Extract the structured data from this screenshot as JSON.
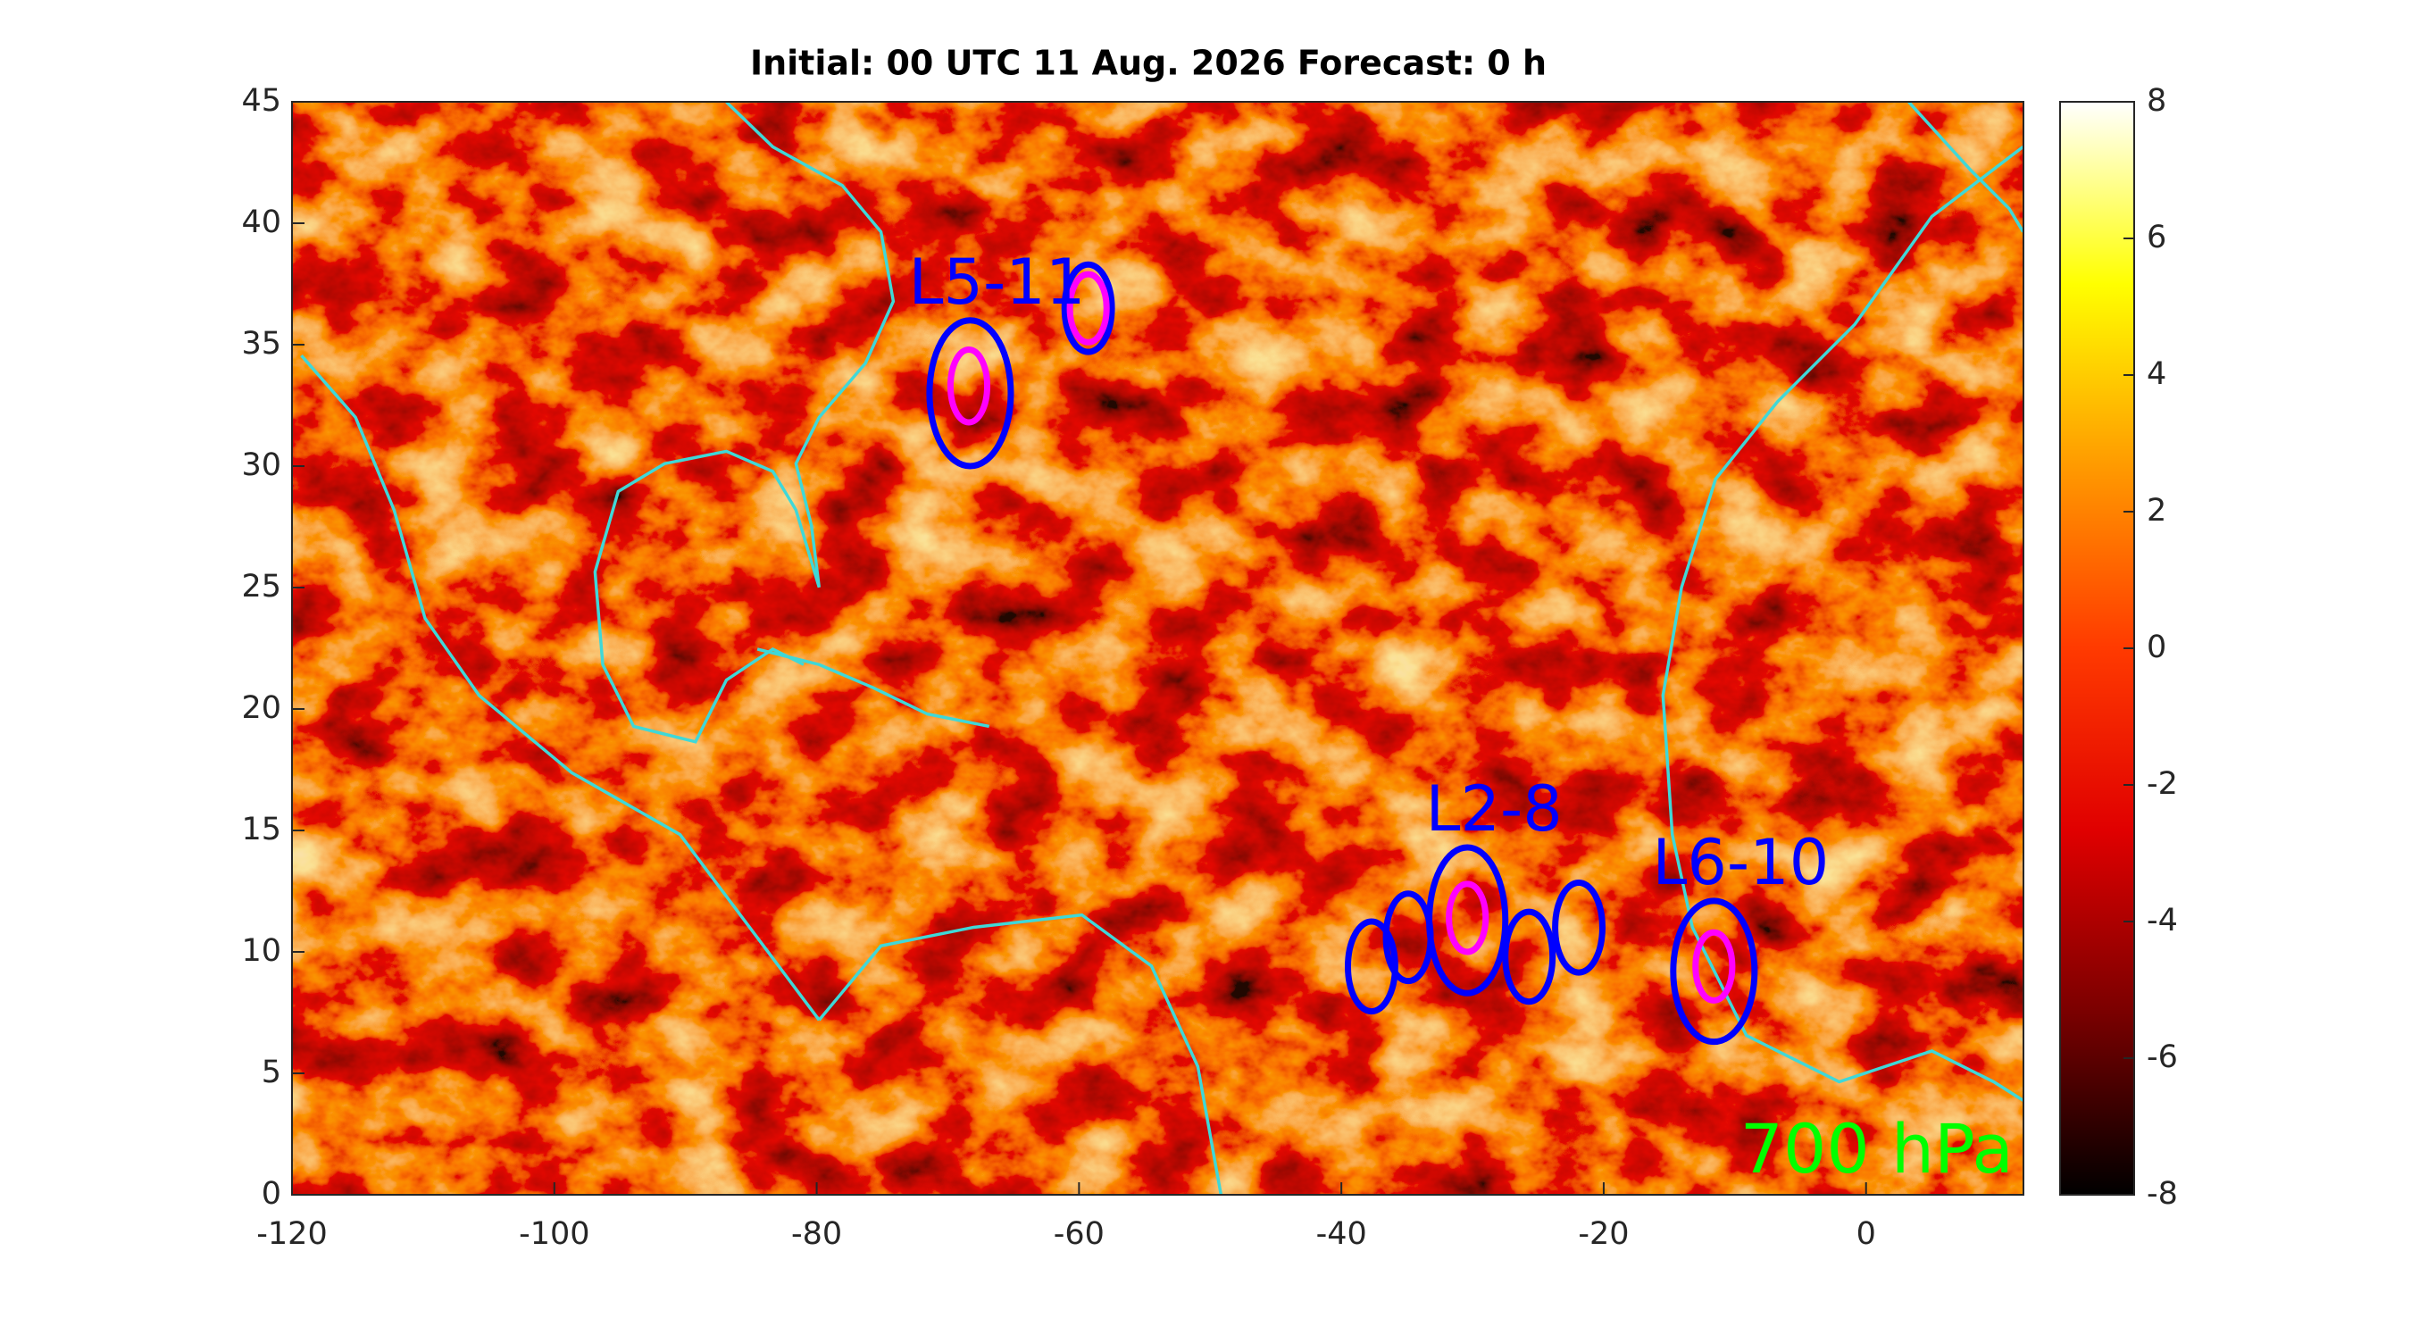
{
  "chart_data": {
    "type": "map",
    "title": "Initial: 00 UTC 11 Aug. 2026 Forecast: 0 h",
    "level": "700 hPa",
    "level_color": "#00ff00",
    "xlim": [
      -120,
      12
    ],
    "ylim": [
      0,
      45
    ],
    "xticks": [
      -120,
      -100,
      -80,
      -60,
      -40,
      -20,
      0
    ],
    "yticks": [
      0,
      5,
      10,
      15,
      20,
      25,
      30,
      35,
      40,
      45
    ],
    "coastline_color": "#3fd8d8",
    "colorbar": {
      "clim": [
        -8,
        8
      ],
      "ticks": [
        -8,
        -6,
        -4,
        -2,
        0,
        2,
        4,
        6,
        8
      ],
      "colormap": [
        "#000000",
        "#7a0000",
        "#e00000",
        "#ff3a00",
        "#ff9a00",
        "#ffff00",
        "#ffffff"
      ]
    },
    "systems": [
      {
        "label": "L5-11",
        "ellipses": [
          {
            "lon": -68.3,
            "lat": 33.0,
            "rx": 3.1,
            "ry": 3.0,
            "color": "#0000ff"
          },
          {
            "lon": -68.4,
            "lat": 33.3,
            "rx": 1.4,
            "ry": 1.5,
            "color": "#ff00ff"
          },
          {
            "lon": -59.3,
            "lat": 36.5,
            "rx": 1.8,
            "ry": 1.8,
            "color": "#0000ff"
          },
          {
            "lon": -59.3,
            "lat": 36.5,
            "rx": 1.4,
            "ry": 1.4,
            "color": "#ff00ff"
          }
        ]
      },
      {
        "label": "L2-8",
        "ellipses": [
          {
            "lon": -30.4,
            "lat": 11.3,
            "rx": 2.9,
            "ry": 3.0,
            "color": "#0000ff"
          },
          {
            "lon": -30.4,
            "lat": 11.4,
            "rx": 1.4,
            "ry": 1.4,
            "color": "#ff00ff"
          },
          {
            "lon": -37.7,
            "lat": 9.4,
            "rx": 1.8,
            "ry": 1.85,
            "color": "#0000ff"
          },
          {
            "lon": -34.9,
            "lat": 10.6,
            "rx": 1.7,
            "ry": 1.8,
            "color": "#0000ff"
          },
          {
            "lon": -25.7,
            "lat": 9.8,
            "rx": 1.8,
            "ry": 1.85,
            "color": "#0000ff"
          },
          {
            "lon": -21.9,
            "lat": 11.0,
            "rx": 1.8,
            "ry": 1.85,
            "color": "#0000ff"
          }
        ]
      },
      {
        "label": "L6-10",
        "ellipses": [
          {
            "lon": -11.6,
            "lat": 9.2,
            "rx": 3.1,
            "ry": 2.9,
            "color": "#0000ff"
          },
          {
            "lon": -11.6,
            "lat": 9.4,
            "rx": 1.4,
            "ry": 1.4,
            "color": "#ff00ff"
          }
        ]
      }
    ]
  }
}
